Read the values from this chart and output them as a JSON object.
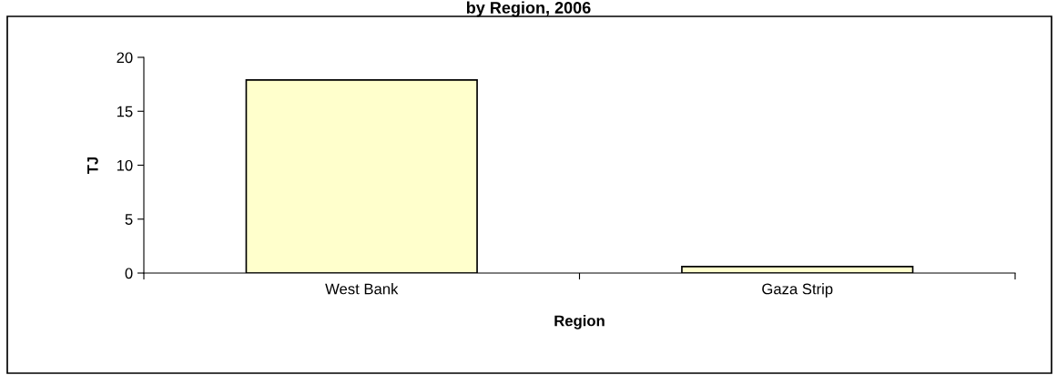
{
  "chart_data": {
    "type": "bar",
    "title": "by Region, 2006",
    "xlabel": "Region",
    "ylabel": "TJ",
    "categories": [
      "West Bank",
      "Gaza Strip"
    ],
    "values": [
      17.9,
      0.6
    ],
    "color": "#ffffcc",
    "ylim": [
      0,
      20
    ],
    "yticks": [
      0,
      5,
      10,
      15,
      20
    ],
    "grid": false,
    "legend": false
  }
}
